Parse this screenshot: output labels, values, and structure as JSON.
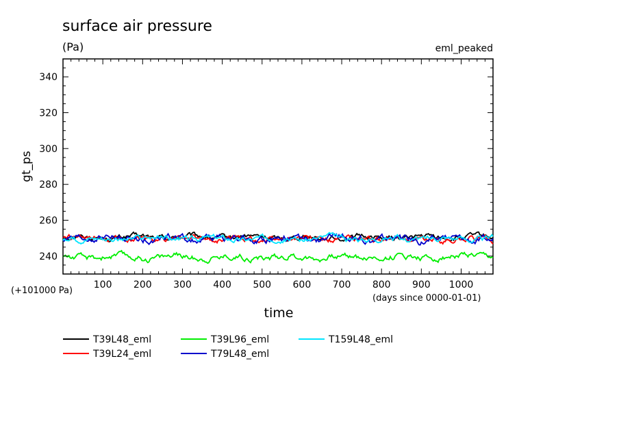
{
  "chart_data": {
    "type": "line",
    "title": "surface air pressure",
    "subtitle": "(Pa)",
    "annotation_right": "eml_peaked",
    "ylabel": "gt_ps",
    "xlabel": "time",
    "x_offset_label": "(+101000 Pa)",
    "x_units_label": "(days since 0000-01-01)",
    "xlim": [
      0,
      1080
    ],
    "ylim": [
      230,
      350
    ],
    "xticks": [
      100,
      200,
      300,
      400,
      500,
      600,
      700,
      800,
      900,
      1000
    ],
    "yticks": [
      240,
      260,
      280,
      300,
      320,
      340
    ],
    "x_tick_labels": [
      "100",
      "200",
      "300",
      "400",
      "500",
      "600",
      "700",
      "800",
      "900",
      "1000"
    ],
    "y_tick_labels": [
      "240",
      "260",
      "280",
      "300",
      "320",
      "340"
    ],
    "series": [
      {
        "name": "T39L48_eml",
        "color": "#000000",
        "mean": 250.5,
        "amplitude": 1.6
      },
      {
        "name": "T39L24_eml",
        "color": "#ff0000",
        "mean": 249.5,
        "amplitude": 1.8
      },
      {
        "name": "T39L96_eml",
        "color": "#00ee00",
        "mean": 239.5,
        "amplitude": 1.9
      },
      {
        "name": "T79L48_eml",
        "color": "#0000cc",
        "mean": 249.5,
        "amplitude": 2.2
      },
      {
        "name": "T159L48_eml",
        "color": "#00e5ff",
        "mean": 249.8,
        "amplitude": 1.7
      }
    ]
  }
}
